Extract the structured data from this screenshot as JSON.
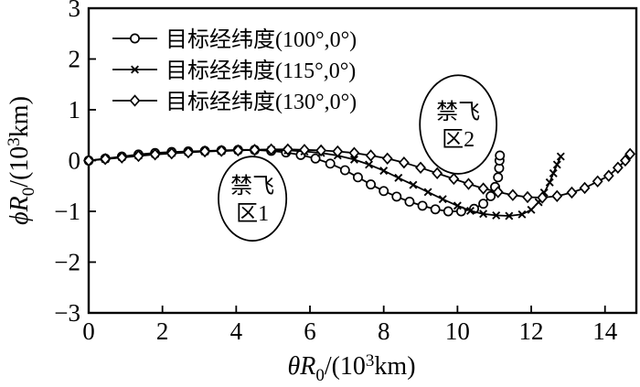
{
  "figure": {
    "background": "#ffffff",
    "ink_color": "#000000"
  },
  "chart_data": {
    "type": "line",
    "title": "",
    "xlabel": {
      "plain": "θR0/(10³km)",
      "italic": "θR",
      "sub": "0",
      "mid": "/(10",
      "sup": "3",
      "post": "km)"
    },
    "ylabel": {
      "plain": "ϕR0/(10³km)",
      "italic": "ϕR",
      "sub": "0",
      "mid": "/(10",
      "sup": "3",
      "post": "km)"
    },
    "xlim": [
      0,
      14.85
    ],
    "ylim": [
      -3,
      3
    ],
    "x_ticks": [
      0,
      2,
      4,
      6,
      8,
      10,
      12,
      14
    ],
    "y_ticks": [
      -3,
      -2,
      -1,
      0,
      1,
      2,
      3
    ],
    "grid": false,
    "legend_position": "top-left-inside",
    "series": [
      {
        "name": "目标经纬度(100°,0°)",
        "marker": "circle",
        "points": [
          [
            0,
            0
          ],
          [
            0.45,
            0.04
          ],
          [
            0.9,
            0.08
          ],
          [
            1.35,
            0.12
          ],
          [
            1.8,
            0.15
          ],
          [
            2.25,
            0.17
          ],
          [
            2.7,
            0.18
          ],
          [
            3.15,
            0.19
          ],
          [
            3.6,
            0.2
          ],
          [
            4.05,
            0.21
          ],
          [
            4.5,
            0.21
          ],
          [
            4.95,
            0.19
          ],
          [
            5.35,
            0.16
          ],
          [
            5.75,
            0.11
          ],
          [
            6.15,
            0.04
          ],
          [
            6.55,
            -0.06
          ],
          [
            6.95,
            -0.19
          ],
          [
            7.3,
            -0.33
          ],
          [
            7.65,
            -0.47
          ],
          [
            8.0,
            -0.6
          ],
          [
            8.35,
            -0.71
          ],
          [
            8.7,
            -0.81
          ],
          [
            9.05,
            -0.89
          ],
          [
            9.4,
            -0.96
          ],
          [
            9.75,
            -1.0
          ],
          [
            10.1,
            -1.0
          ],
          [
            10.45,
            -0.95
          ],
          [
            10.7,
            -0.85
          ],
          [
            10.9,
            -0.7
          ],
          [
            11.02,
            -0.52
          ],
          [
            11.1,
            -0.33
          ],
          [
            11.13,
            -0.15
          ],
          [
            11.14,
            0.0
          ],
          [
            11.15,
            0.1
          ]
        ]
      },
      {
        "name": "目标经纬度(115°,0°)",
        "marker": "x",
        "points": [
          [
            0,
            0
          ],
          [
            0.45,
            0.03
          ],
          [
            0.9,
            0.07
          ],
          [
            1.35,
            0.1
          ],
          [
            1.8,
            0.13
          ],
          [
            2.25,
            0.15
          ],
          [
            2.7,
            0.17
          ],
          [
            3.15,
            0.18
          ],
          [
            3.6,
            0.19
          ],
          [
            4.05,
            0.2
          ],
          [
            4.5,
            0.21
          ],
          [
            4.95,
            0.21
          ],
          [
            5.4,
            0.2
          ],
          [
            5.85,
            0.18
          ],
          [
            6.3,
            0.15
          ],
          [
            6.75,
            0.1
          ],
          [
            7.2,
            0.02
          ],
          [
            7.6,
            -0.08
          ],
          [
            8.0,
            -0.2
          ],
          [
            8.4,
            -0.34
          ],
          [
            8.8,
            -0.48
          ],
          [
            9.2,
            -0.62
          ],
          [
            9.6,
            -0.76
          ],
          [
            10.0,
            -0.89
          ],
          [
            10.35,
            -0.99
          ],
          [
            10.7,
            -1.05
          ],
          [
            11.05,
            -1.08
          ],
          [
            11.4,
            -1.09
          ],
          [
            11.75,
            -1.06
          ],
          [
            12.0,
            -0.97
          ],
          [
            12.2,
            -0.82
          ],
          [
            12.35,
            -0.63
          ],
          [
            12.5,
            -0.43
          ],
          [
            12.6,
            -0.25
          ],
          [
            12.7,
            -0.08
          ],
          [
            12.8,
            0.08
          ]
        ]
      },
      {
        "name": "目标经纬度(130°,0°)",
        "marker": "diamond",
        "points": [
          [
            0,
            0
          ],
          [
            0.45,
            0.03
          ],
          [
            0.9,
            0.06
          ],
          [
            1.35,
            0.09
          ],
          [
            1.8,
            0.12
          ],
          [
            2.25,
            0.14
          ],
          [
            2.7,
            0.16
          ],
          [
            3.15,
            0.18
          ],
          [
            3.6,
            0.19
          ],
          [
            4.05,
            0.2
          ],
          [
            4.5,
            0.21
          ],
          [
            4.95,
            0.22
          ],
          [
            5.4,
            0.22
          ],
          [
            5.85,
            0.21
          ],
          [
            6.3,
            0.2
          ],
          [
            6.75,
            0.18
          ],
          [
            7.2,
            0.15
          ],
          [
            7.65,
            0.1
          ],
          [
            8.1,
            0.04
          ],
          [
            8.55,
            -0.04
          ],
          [
            9.0,
            -0.14
          ],
          [
            9.45,
            -0.25
          ],
          [
            9.9,
            -0.36
          ],
          [
            10.3,
            -0.46
          ],
          [
            10.7,
            -0.55
          ],
          [
            11.1,
            -0.62
          ],
          [
            11.5,
            -0.68
          ],
          [
            11.9,
            -0.72
          ],
          [
            12.3,
            -0.73
          ],
          [
            12.7,
            -0.7
          ],
          [
            13.1,
            -0.63
          ],
          [
            13.45,
            -0.54
          ],
          [
            13.8,
            -0.41
          ],
          [
            14.1,
            -0.3
          ],
          [
            14.35,
            -0.14
          ],
          [
            14.55,
            0.0
          ],
          [
            14.68,
            0.13
          ]
        ]
      }
    ],
    "annotations": [
      {
        "lines": [
          "禁飞",
          "区1"
        ],
        "x": 4.44,
        "y": -0.75,
        "rx": 0.92,
        "ry": 0.83
      },
      {
        "lines": [
          "禁飞",
          "区2"
        ],
        "x": 10.02,
        "y": 0.71,
        "rx": 1.04,
        "ry": 0.97
      }
    ]
  }
}
